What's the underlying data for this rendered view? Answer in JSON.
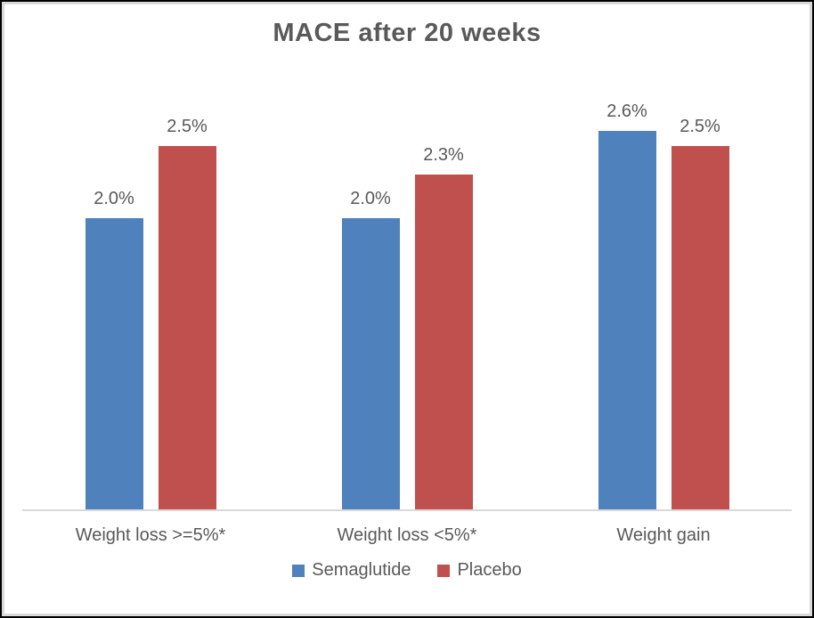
{
  "chart_data": {
    "type": "bar",
    "title": "MACE after 20 weeks",
    "categories": [
      "Weight loss >=5%*",
      "Weight loss <5%*",
      "Weight gain"
    ],
    "series": [
      {
        "name": "Semaglutide",
        "color": "#4F81BD",
        "values": [
          2.0,
          2.0,
          2.6
        ],
        "labels": [
          "2.0%",
          "2.0%",
          "2.6%"
        ]
      },
      {
        "name": "Placebo",
        "color": "#C0504D",
        "values": [
          2.5,
          2.3,
          2.5
        ],
        "labels": [
          "2.5%",
          "2.3%",
          "2.5%"
        ]
      }
    ],
    "ylim": [
      0,
      3.0
    ],
    "y_axis_visible": false,
    "gridlines": false,
    "data_labels": true,
    "legend_position": "bottom"
  },
  "colors": {
    "text": "#595959",
    "axis_line": "#D9D9D9",
    "background": "#FFFFFF",
    "frame_border": "#000000"
  }
}
